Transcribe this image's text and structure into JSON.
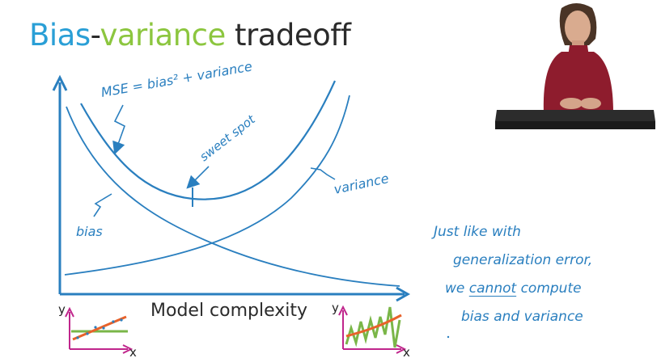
{
  "title": {
    "part1": "Bias",
    "dash": "-",
    "part2": "variance",
    "part3": " tradeoff"
  },
  "diagram": {
    "curve_labels": {
      "mse": "MSE = bias² + variance",
      "sweet_spot": "sweet spot",
      "bias": "bias",
      "variance": "variance"
    },
    "x_axis_label": "Model complexity",
    "inset_axis_labels": {
      "y": "y",
      "x": "x"
    }
  },
  "note": {
    "line1": "Just like with",
    "line2": "generalization error,",
    "line3_pre": "we ",
    "line3_underlined": "cannot",
    "line3_post": " compute",
    "line4": "bias and variance"
  },
  "colors": {
    "title_blue": "#2a9fd6",
    "title_green": "#8cc63f",
    "ink": "#2a7fbf",
    "inset_axis": "#c0268c",
    "inset_fit": "#e8622a",
    "inset_data": "#7ab648"
  }
}
